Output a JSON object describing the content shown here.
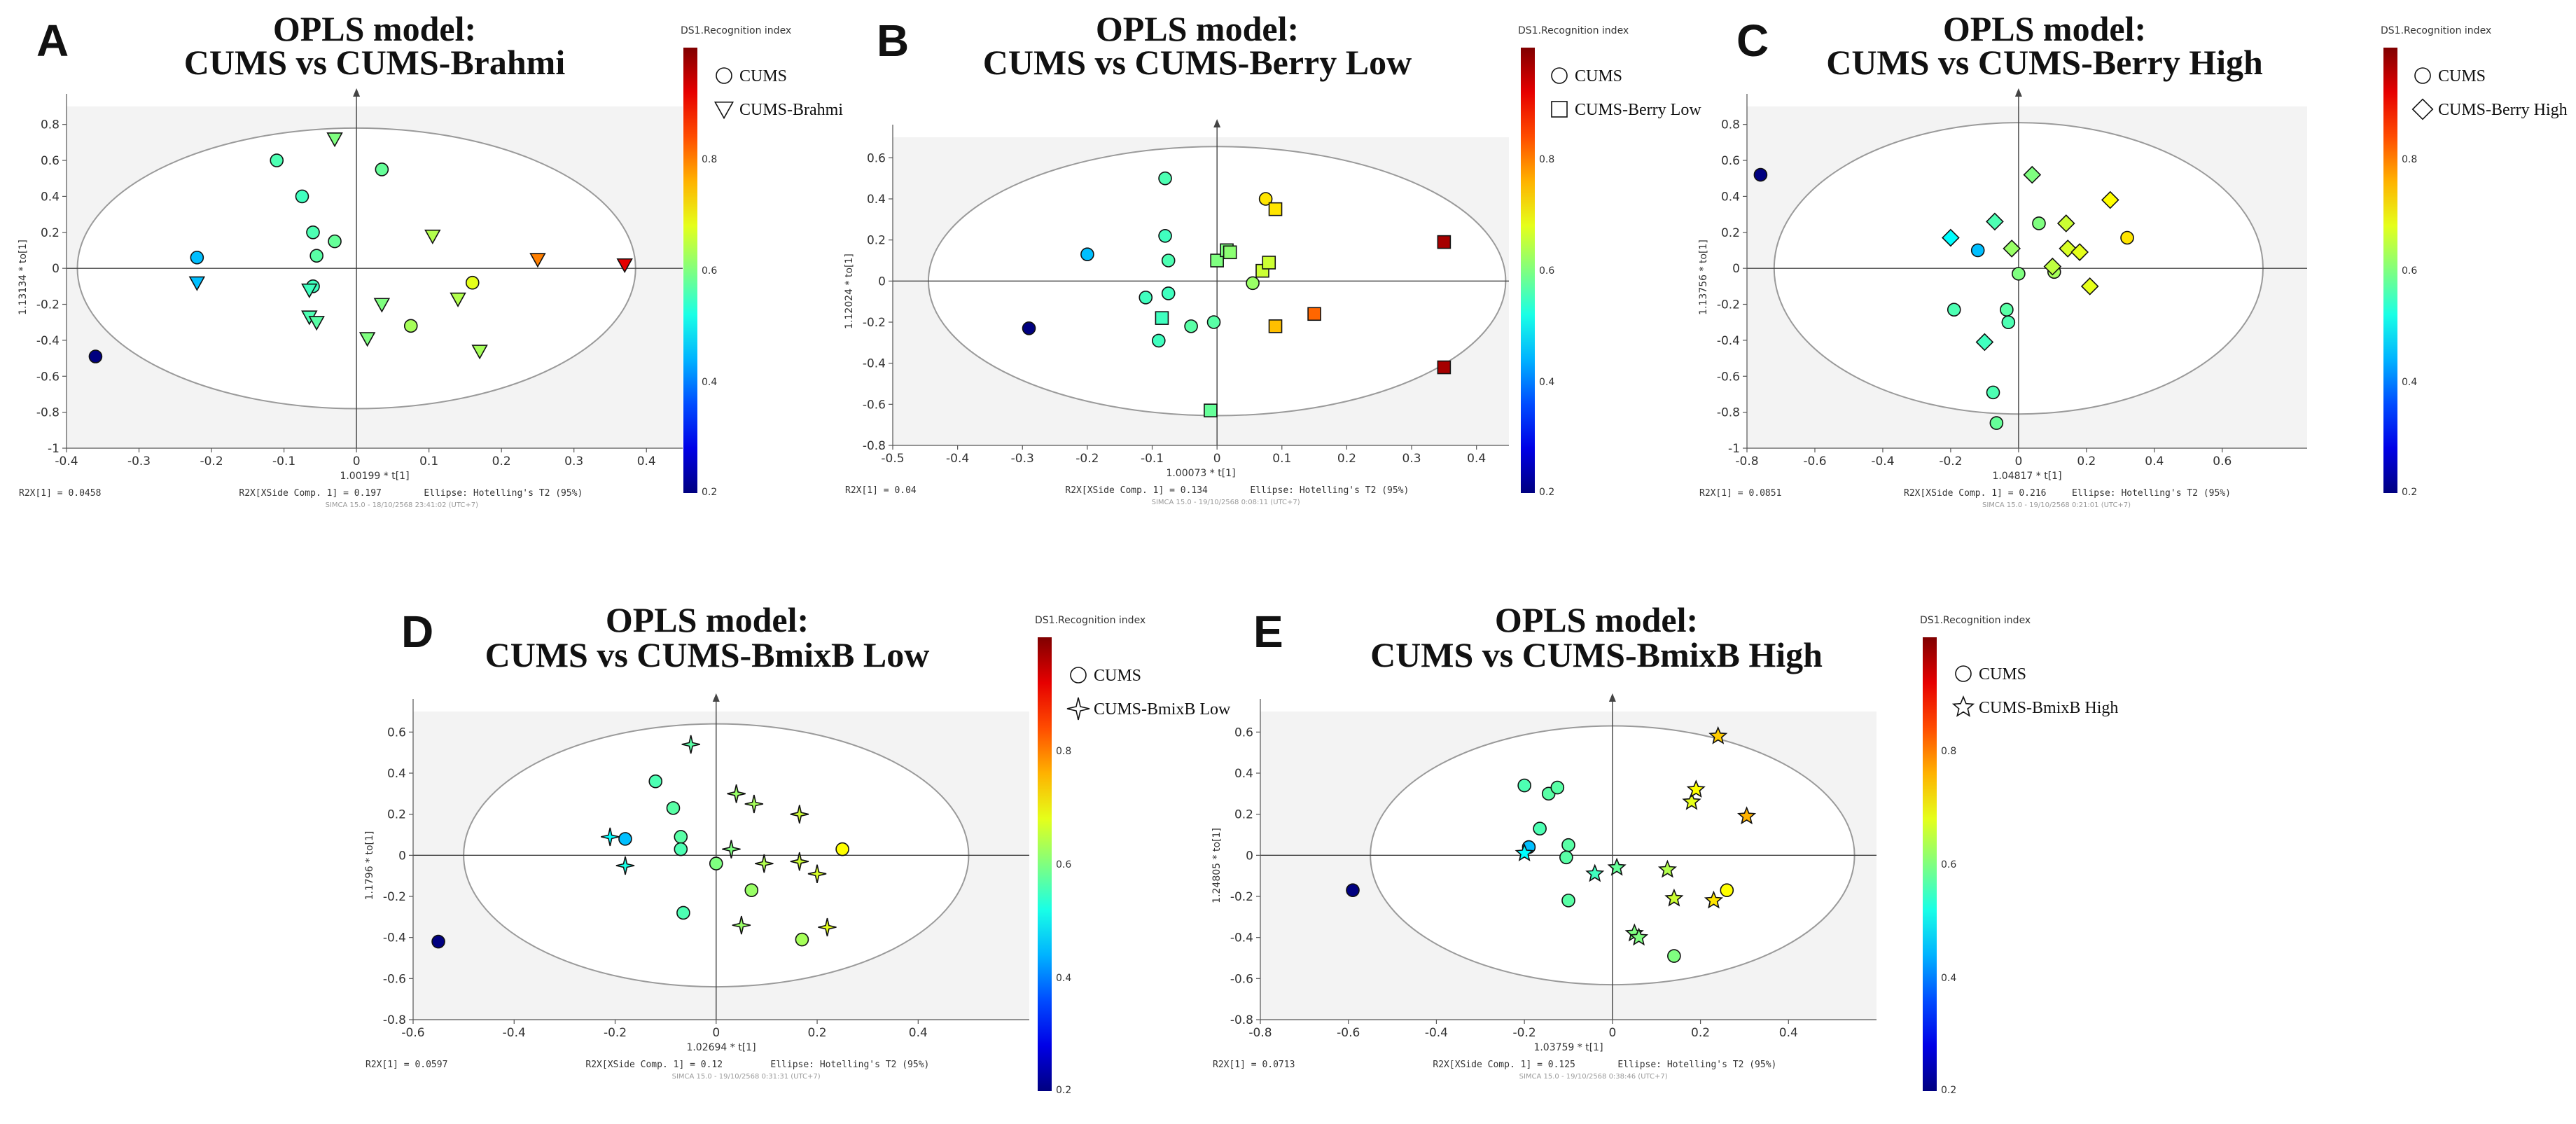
{
  "colors": {
    "cums": "circle",
    "mark_stroke": "#111111",
    "ellipse": "#9a9a9a",
    "grid_bg": "#f3f3f3"
  },
  "chart_data": [
    {
      "id": "A",
      "type": "scatter",
      "panel_label": "A",
      "title_line1": "OPLS model:",
      "title_line2": "CUMS vs CUMS-Brahmi",
      "xlim": [
        -0.4,
        0.45
      ],
      "ylim": [
        -1,
        0.9
      ],
      "xticks": [
        "-0.4",
        "-0.3",
        "-0.2",
        "-0.1",
        "0",
        "0.1",
        "0.2",
        "0.3",
        "0.4"
      ],
      "xtick_values": [
        -0.4,
        -0.3,
        -0.2,
        -0.1,
        0,
        0.1,
        0.2,
        0.3,
        0.4
      ],
      "yticks": [
        "-1",
        "-0.8",
        "-0.6",
        "-0.4",
        "-0.2",
        "0",
        "0.2",
        "0.4",
        "0.6",
        "0.8"
      ],
      "ytick_values": [
        -1,
        -0.8,
        -0.6,
        -0.4,
        -0.2,
        0,
        0.2,
        0.4,
        0.6,
        0.8
      ],
      "xlabel": "1.00199 * t[1]",
      "ylabel": "1.13134 * to[1]",
      "ellipse_rx": 0.385,
      "ellipse_ry": 0.78,
      "colorbar_title": "DS1.Recognition index",
      "colorbar_ticks": [
        "0.8",
        "0.6",
        "0.4",
        "0.2"
      ],
      "colorbar_tick_values": [
        0.8,
        0.6,
        0.4,
        0.2
      ],
      "legend": [
        {
          "label": "CUMS",
          "marker": "circle"
        },
        {
          "label": "CUMS-Brahmi",
          "marker": "triangle"
        }
      ],
      "footer_r2x": "R2X[1] = 0.0458",
      "footer_r2x_side": "R2X[XSide Comp. 1] = 0.197",
      "footer_ellipse": "Ellipse: Hotelling's T2 (95%)",
      "footer_sw": "SIMCA 15.0 - 18/10/2568 23:41:02 (UTC+7)",
      "series": [
        {
          "name": "CUMS",
          "marker": "circle",
          "points": [
            [
              -0.36,
              -0.49,
              0.2
            ],
            [
              -0.22,
              0.06,
              0.45
            ],
            [
              -0.11,
              0.6,
              0.56
            ],
            [
              -0.075,
              0.4,
              0.55
            ],
            [
              -0.06,
              0.2,
              0.56
            ],
            [
              -0.055,
              0.07,
              0.57
            ],
            [
              -0.06,
              -0.1,
              0.55
            ],
            [
              -0.03,
              0.15,
              0.58
            ],
            [
              0.035,
              0.55,
              0.58
            ],
            [
              0.075,
              -0.32,
              0.63
            ],
            [
              0.16,
              -0.08,
              0.68
            ]
          ]
        },
        {
          "name": "CUMS-Brahmi",
          "marker": "triangle",
          "points": [
            [
              -0.22,
              -0.08,
              0.45
            ],
            [
              -0.065,
              -0.12,
              0.55
            ],
            [
              -0.065,
              -0.27,
              0.56
            ],
            [
              -0.055,
              -0.3,
              0.57
            ],
            [
              -0.03,
              0.72,
              0.6
            ],
            [
              0.015,
              -0.39,
              0.6
            ],
            [
              0.035,
              -0.2,
              0.6
            ],
            [
              0.105,
              0.18,
              0.64
            ],
            [
              0.14,
              -0.17,
              0.64
            ],
            [
              0.17,
              -0.46,
              0.63
            ],
            [
              0.25,
              0.05,
              0.8
            ],
            [
              0.37,
              0.02,
              0.92
            ]
          ]
        }
      ]
    },
    {
      "id": "B",
      "type": "scatter",
      "panel_label": "B",
      "title_line1": "OPLS model:",
      "title_line2": "CUMS vs CUMS-Berry Low",
      "xlim": [
        -0.5,
        0.45
      ],
      "ylim": [
        -0.8,
        0.7
      ],
      "xticks": [
        "-0.5",
        "-0.4",
        "-0.3",
        "-0.2",
        "-0.1",
        "0",
        "0.1",
        "0.2",
        "0.3",
        "0.4"
      ],
      "xtick_values": [
        -0.5,
        -0.4,
        -0.3,
        -0.2,
        -0.1,
        0,
        0.1,
        0.2,
        0.3,
        0.4
      ],
      "yticks": [
        "-0.8",
        "-0.6",
        "-0.4",
        "-0.2",
        "0",
        "0.2",
        "0.4",
        "0.6"
      ],
      "ytick_values": [
        -0.8,
        -0.6,
        -0.4,
        -0.2,
        0,
        0.2,
        0.4,
        0.6
      ],
      "xlabel": "1.00073 * t[1]",
      "ylabel": "1.12024 * to[1]",
      "ellipse_rx": 0.445,
      "ellipse_ry": 0.655,
      "colorbar_title": "DS1.Recognition index",
      "colorbar_ticks": [
        "0.8",
        "0.6",
        "0.4",
        "0.2"
      ],
      "colorbar_tick_values": [
        0.8,
        0.6,
        0.4,
        0.2
      ],
      "legend": [
        {
          "label": "CUMS",
          "marker": "circle"
        },
        {
          "label": "CUMS-Berry Low",
          "marker": "square"
        }
      ],
      "footer_r2x": "R2X[1] = 0.04",
      "footer_r2x_side": "R2X[XSide Comp. 1] = 0.134",
      "footer_ellipse": "Ellipse: Hotelling's T2 (95%)",
      "footer_sw": "SIMCA 15.0 - 19/10/2568 0:08:11 (UTC+7)",
      "series": [
        {
          "name": "CUMS",
          "marker": "circle",
          "points": [
            [
              -0.29,
              -0.23,
              0.2
            ],
            [
              -0.2,
              0.13,
              0.45
            ],
            [
              -0.11,
              -0.08,
              0.55
            ],
            [
              -0.09,
              -0.29,
              0.55
            ],
            [
              -0.08,
              0.5,
              0.56
            ],
            [
              -0.08,
              0.22,
              0.55
            ],
            [
              -0.075,
              0.1,
              0.56
            ],
            [
              -0.075,
              -0.06,
              0.55
            ],
            [
              -0.04,
              -0.22,
              0.57
            ],
            [
              -0.005,
              -0.2,
              0.57
            ],
            [
              0.055,
              -0.01,
              0.62
            ],
            [
              0.075,
              0.4,
              0.72
            ]
          ]
        },
        {
          "name": "CUMS-Berry Low",
          "marker": "square",
          "points": [
            [
              -0.085,
              -0.18,
              0.55
            ],
            [
              -0.01,
              -0.63,
              0.58
            ],
            [
              0.0,
              0.1,
              0.6
            ],
            [
              0.015,
              0.15,
              0.6
            ],
            [
              0.02,
              0.14,
              0.61
            ],
            [
              0.07,
              0.05,
              0.66
            ],
            [
              0.08,
              0.09,
              0.66
            ],
            [
              0.09,
              0.35,
              0.72
            ],
            [
              0.09,
              -0.22,
              0.75
            ],
            [
              0.15,
              -0.16,
              0.82
            ],
            [
              0.35,
              0.19,
              0.97
            ],
            [
              0.35,
              -0.42,
              0.97
            ]
          ]
        }
      ]
    },
    {
      "id": "C",
      "type": "scatter",
      "panel_label": "C",
      "title_line1": "OPLS model:",
      "title_line2": "CUMS vs CUMS-Berry High",
      "xlim": [
        -0.8,
        0.85
      ],
      "ylim": [
        -1,
        0.9
      ],
      "xticks": [
        "-0.8",
        "-0.6",
        "-0.4",
        "-0.2",
        "0",
        "0.2",
        "0.4",
        "0.6"
      ],
      "xtick_values": [
        -0.8,
        -0.6,
        -0.4,
        -0.2,
        0,
        0.2,
        0.4,
        0.6
      ],
      "yticks": [
        "-1",
        "-0.8",
        "-0.6",
        "-0.4",
        "-0.2",
        "0",
        "0.2",
        "0.4",
        "0.6",
        "0.8"
      ],
      "ytick_values": [
        -1,
        -0.8,
        -0.6,
        -0.4,
        -0.2,
        0,
        0.2,
        0.4,
        0.6,
        0.8
      ],
      "xlabel": "1.04817 * t[1]",
      "ylabel": "1.13756 * to[1]",
      "ellipse_rx": 0.72,
      "ellipse_ry": 0.81,
      "colorbar_title": "DS1.Recognition index",
      "colorbar_ticks": [
        "0.8",
        "0.6",
        "0.4",
        "0.2"
      ],
      "colorbar_tick_values": [
        0.8,
        0.6,
        0.4,
        0.2
      ],
      "legend": [
        {
          "label": "CUMS",
          "marker": "circle"
        },
        {
          "label": "CUMS-Berry High",
          "marker": "diamond"
        }
      ],
      "footer_r2x": "R2X[1] = 0.0851",
      "footer_r2x_side": "R2X[XSide Comp. 1] = 0.216",
      "footer_ellipse": "Ellipse: Hotelling's T2 (95%)",
      "footer_sw": "SIMCA 15.0 - 19/10/2568 0:21:01 (UTC+7)",
      "series": [
        {
          "name": "CUMS",
          "marker": "circle",
          "points": [
            [
              -0.76,
              0.52,
              0.2
            ],
            [
              -0.12,
              0.1,
              0.45
            ],
            [
              -0.19,
              -0.23,
              0.56
            ],
            [
              -0.035,
              -0.23,
              0.57
            ],
            [
              -0.03,
              -0.3,
              0.56
            ],
            [
              -0.075,
              -0.69,
              0.56
            ],
            [
              -0.065,
              -0.86,
              0.58
            ],
            [
              0.0,
              -0.03,
              0.6
            ],
            [
              0.06,
              0.25,
              0.6
            ],
            [
              0.105,
              -0.02,
              0.63
            ],
            [
              0.32,
              0.17,
              0.72
            ]
          ]
        },
        {
          "name": "CUMS-Berry High",
          "marker": "diamond",
          "points": [
            [
              -0.2,
              0.17,
              0.5
            ],
            [
              -0.1,
              -0.41,
              0.55
            ],
            [
              -0.07,
              0.26,
              0.56
            ],
            [
              -0.02,
              0.11,
              0.62
            ],
            [
              0.04,
              0.52,
              0.6
            ],
            [
              0.1,
              0.01,
              0.65
            ],
            [
              0.14,
              0.25,
              0.66
            ],
            [
              0.145,
              0.11,
              0.67
            ],
            [
              0.18,
              0.09,
              0.68
            ],
            [
              0.21,
              -0.1,
              0.68
            ],
            [
              0.27,
              0.38,
              0.7
            ]
          ]
        }
      ]
    },
    {
      "id": "D",
      "type": "scatter",
      "panel_label": "D",
      "title_line1": "OPLS model:",
      "title_line2": "CUMS vs CUMS-BmixB Low",
      "xlim": [
        -0.6,
        0.62
      ],
      "ylim": [
        -0.8,
        0.7
      ],
      "xticks": [
        "-0.6",
        "-0.4",
        "-0.2",
        "0",
        "0.2",
        "0.4"
      ],
      "xtick_values": [
        -0.6,
        -0.4,
        -0.2,
        0,
        0.2,
        0.4
      ],
      "yticks": [
        "-0.8",
        "-0.6",
        "-0.4",
        "-0.2",
        "0",
        "0.2",
        "0.4",
        "0.6"
      ],
      "ytick_values": [
        -0.8,
        -0.6,
        -0.4,
        -0.2,
        0,
        0.2,
        0.4,
        0.6
      ],
      "xlabel": "1.02694 * t[1]",
      "ylabel": "1.1796 * to[1]",
      "ellipse_rx": 0.5,
      "ellipse_ry": 0.64,
      "colorbar_title": "DS1.Recognition index",
      "colorbar_ticks": [
        "0.8",
        "0.6",
        "0.4",
        "0.2"
      ],
      "colorbar_tick_values": [
        0.8,
        0.6,
        0.4,
        0.2
      ],
      "legend": [
        {
          "label": "CUMS",
          "marker": "circle"
        },
        {
          "label": "CUMS-BmixB Low",
          "marker": "star4"
        }
      ],
      "footer_r2x": "R2X[1] = 0.0597",
      "footer_r2x_side": "R2X[XSide Comp. 1] = 0.12",
      "footer_ellipse": "Ellipse: Hotelling's T2 (95%)",
      "footer_sw": "SIMCA 15.0 - 19/10/2568 0:31:31 (UTC+7)",
      "series": [
        {
          "name": "CUMS",
          "marker": "circle",
          "points": [
            [
              -0.55,
              -0.42,
              0.2
            ],
            [
              -0.18,
              0.08,
              0.45
            ],
            [
              -0.12,
              0.36,
              0.56
            ],
            [
              -0.085,
              0.23,
              0.57
            ],
            [
              -0.07,
              0.09,
              0.57
            ],
            [
              -0.07,
              0.03,
              0.56
            ],
            [
              -0.065,
              -0.28,
              0.56
            ],
            [
              0.0,
              -0.04,
              0.6
            ],
            [
              0.07,
              -0.17,
              0.62
            ],
            [
              0.17,
              -0.41,
              0.63
            ],
            [
              0.25,
              0.03,
              0.7
            ]
          ]
        },
        {
          "name": "CUMS-BmixB Low",
          "marker": "star4",
          "points": [
            [
              -0.21,
              0.09,
              0.5
            ],
            [
              -0.18,
              -0.05,
              0.52
            ],
            [
              -0.05,
              0.54,
              0.57
            ],
            [
              0.03,
              0.03,
              0.6
            ],
            [
              0.04,
              0.3,
              0.62
            ],
            [
              0.05,
              -0.34,
              0.62
            ],
            [
              0.075,
              0.25,
              0.63
            ],
            [
              0.095,
              -0.04,
              0.64
            ],
            [
              0.165,
              0.2,
              0.66
            ],
            [
              0.165,
              -0.03,
              0.66
            ],
            [
              0.2,
              -0.09,
              0.67
            ],
            [
              0.22,
              -0.35,
              0.68
            ]
          ]
        }
      ]
    },
    {
      "id": "E",
      "type": "scatter",
      "panel_label": "E",
      "title_line1": "OPLS model:",
      "title_line2": "CUMS vs CUMS-BmixB High",
      "xlim": [
        -0.8,
        0.6
      ],
      "ylim": [
        -0.8,
        0.7
      ],
      "xticks": [
        "-0.8",
        "-0.6",
        "-0.4",
        "-0.2",
        "0",
        "0.2",
        "0.4"
      ],
      "xtick_values": [
        -0.8,
        -0.6,
        -0.4,
        -0.2,
        0,
        0.2,
        0.4
      ],
      "yticks": [
        "-0.8",
        "-0.6",
        "-0.4",
        "-0.2",
        "0",
        "0.2",
        "0.4",
        "0.6"
      ],
      "ytick_values": [
        -0.8,
        -0.6,
        -0.4,
        -0.2,
        0,
        0.2,
        0.4,
        0.6
      ],
      "xlabel": "1.03759 * t[1]",
      "ylabel": "1.24805 * to[1]",
      "ellipse_rx": 0.55,
      "ellipse_ry": 0.63,
      "colorbar_title": "DS1.Recognition index",
      "colorbar_ticks": [
        "0.8",
        "0.6",
        "0.4",
        "0.2"
      ],
      "colorbar_tick_values": [
        0.8,
        0.6,
        0.4,
        0.2
      ],
      "legend": [
        {
          "label": "CUMS",
          "marker": "circle"
        },
        {
          "label": "CUMS-BmixB High",
          "marker": "star5"
        }
      ],
      "footer_r2x": "R2X[1] = 0.0713",
      "footer_r2x_side": "R2X[XSide Comp. 1] = 0.125",
      "footer_ellipse": "Ellipse: Hotelling's T2 (95%)",
      "footer_sw": "SIMCA 15.0 - 19/10/2568 0:38:46 (UTC+7)",
      "series": [
        {
          "name": "CUMS",
          "marker": "circle",
          "points": [
            [
              -0.59,
              -0.17,
              0.2
            ],
            [
              -0.19,
              0.04,
              0.45
            ],
            [
              -0.2,
              0.34,
              0.56
            ],
            [
              -0.145,
              0.3,
              0.57
            ],
            [
              -0.125,
              0.33,
              0.57
            ],
            [
              -0.165,
              0.13,
              0.56
            ],
            [
              -0.1,
              0.05,
              0.57
            ],
            [
              -0.105,
              -0.01,
              0.57
            ],
            [
              -0.1,
              -0.22,
              0.57
            ],
            [
              0.14,
              -0.49,
              0.6
            ],
            [
              0.26,
              -0.17,
              0.7
            ]
          ]
        },
        {
          "name": "CUMS-BmixB High",
          "marker": "star5",
          "points": [
            [
              -0.2,
              0.01,
              0.5
            ],
            [
              -0.04,
              -0.09,
              0.55
            ],
            [
              0.01,
              -0.06,
              0.58
            ],
            [
              0.05,
              -0.38,
              0.6
            ],
            [
              0.06,
              -0.4,
              0.6
            ],
            [
              0.125,
              -0.07,
              0.64
            ],
            [
              0.14,
              -0.21,
              0.66
            ],
            [
              0.18,
              0.26,
              0.68
            ],
            [
              0.19,
              0.32,
              0.7
            ],
            [
              0.23,
              -0.22,
              0.72
            ],
            [
              0.24,
              0.58,
              0.74
            ],
            [
              0.305,
              0.19,
              0.76
            ]
          ]
        }
      ]
    }
  ]
}
